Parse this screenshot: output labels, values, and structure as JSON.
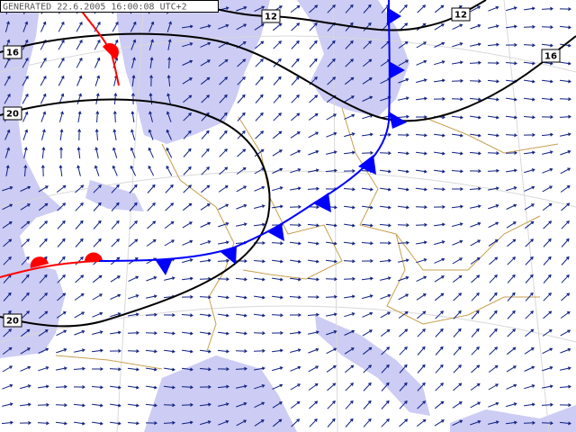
{
  "header": {
    "generated": "GENERATED 22.6.2005 16:00:08 UTC+2"
  },
  "isobar_labels": [
    "12",
    "12",
    "16",
    "16",
    "20",
    "20"
  ]
}
